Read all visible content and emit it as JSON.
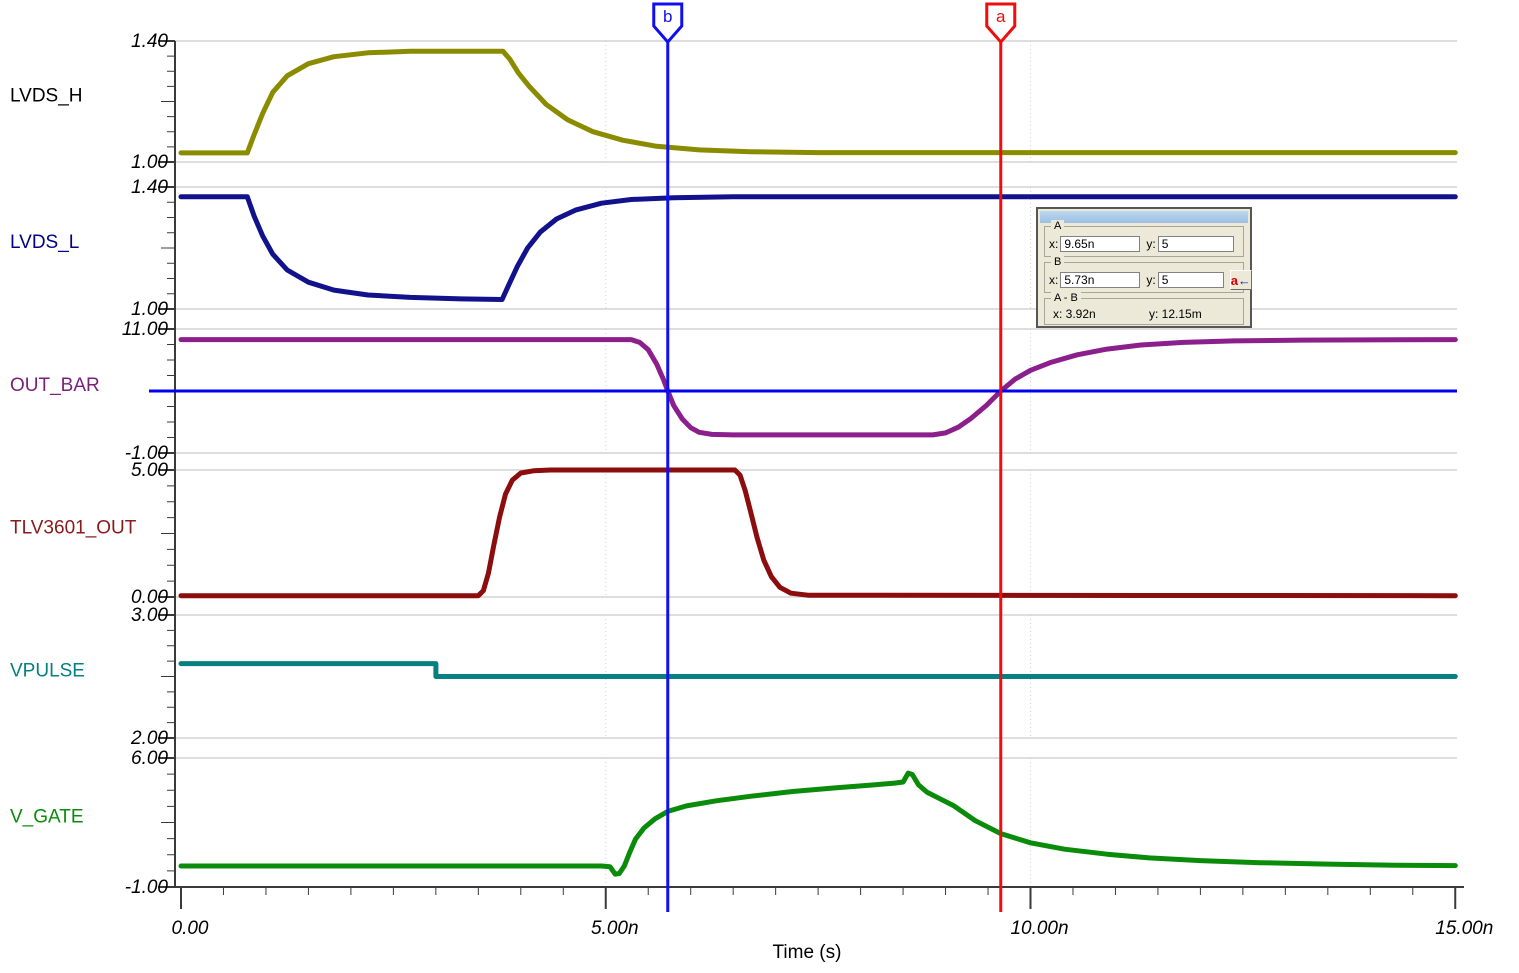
{
  "chart_data": {
    "type": "line",
    "title": "",
    "xlabel": "Time (s)",
    "x_unit": "ns",
    "x_range": [
      0,
      15
    ],
    "x_minor_step": 0.5,
    "x_major_ticks": [
      {
        "t": 0,
        "label": "0.00"
      },
      {
        "t": 5,
        "label": "5.00n"
      },
      {
        "t": 10,
        "label": "10.00n"
      },
      {
        "t": 15,
        "label": "15.00n"
      }
    ],
    "grid": "panel-top-bottom-lines plus dotted verticals at major ticks",
    "panels": [
      {
        "name": "LVDS_H",
        "label_color": "#000000",
        "color": "#8B8B00",
        "ymin": 1.0,
        "ymax": 1.4,
        "ymin_label": "1.00",
        "ymax_label": "1.40",
        "points": [
          [
            0,
            1.03
          ],
          [
            0.78,
            1.03
          ],
          [
            0.86,
            1.09
          ],
          [
            0.96,
            1.16
          ],
          [
            1.08,
            1.23
          ],
          [
            1.25,
            1.285
          ],
          [
            1.5,
            1.325
          ],
          [
            1.8,
            1.348
          ],
          [
            2.2,
            1.361
          ],
          [
            2.7,
            1.366
          ],
          [
            3.79,
            1.366
          ],
          [
            3.87,
            1.34
          ],
          [
            3.97,
            1.295
          ],
          [
            4.1,
            1.25
          ],
          [
            4.3,
            1.19
          ],
          [
            4.55,
            1.14
          ],
          [
            4.85,
            1.1
          ],
          [
            5.2,
            1.072
          ],
          [
            5.6,
            1.052
          ],
          [
            6.1,
            1.04
          ],
          [
            6.7,
            1.034
          ],
          [
            7.5,
            1.031
          ],
          [
            15,
            1.031
          ]
        ]
      },
      {
        "name": "LVDS_L",
        "label_color": "#00008B",
        "color": "#12128C",
        "ymin": 1.0,
        "ymax": 1.4,
        "ymin_label": "1.00",
        "ymax_label": "1.40",
        "points": [
          [
            0,
            1.368
          ],
          [
            0.78,
            1.368
          ],
          [
            0.86,
            1.305
          ],
          [
            0.96,
            1.24
          ],
          [
            1.08,
            1.18
          ],
          [
            1.25,
            1.128
          ],
          [
            1.5,
            1.088
          ],
          [
            1.8,
            1.062
          ],
          [
            2.2,
            1.046
          ],
          [
            2.7,
            1.038
          ],
          [
            3.3,
            1.033
          ],
          [
            3.78,
            1.031
          ],
          [
            3.86,
            1.08
          ],
          [
            3.96,
            1.14
          ],
          [
            4.08,
            1.2
          ],
          [
            4.23,
            1.252
          ],
          [
            4.42,
            1.295
          ],
          [
            4.65,
            1.325
          ],
          [
            4.95,
            1.347
          ],
          [
            5.3,
            1.359
          ],
          [
            5.8,
            1.365
          ],
          [
            6.5,
            1.368
          ],
          [
            15,
            1.368
          ]
        ]
      },
      {
        "name": "OUT_BAR",
        "label_color": "#7B1F7B",
        "color": "#8B1F8B",
        "ymin": -1.0,
        "ymax": 11.0,
        "ymin_label": "-1.00",
        "ymax_label": "11.00",
        "hline": {
          "value": 5,
          "color": "#0000F0"
        },
        "points": [
          [
            0,
            9.97
          ],
          [
            5.3,
            9.97
          ],
          [
            5.4,
            9.7
          ],
          [
            5.5,
            9.0
          ],
          [
            5.6,
            7.6
          ],
          [
            5.68,
            6.1
          ],
          [
            5.73,
            5.0
          ],
          [
            5.8,
            3.6
          ],
          [
            5.9,
            2.3
          ],
          [
            6.0,
            1.45
          ],
          [
            6.1,
            1.0
          ],
          [
            6.25,
            0.8
          ],
          [
            6.5,
            0.75
          ],
          [
            8.85,
            0.75
          ],
          [
            9.0,
            0.95
          ],
          [
            9.15,
            1.5
          ],
          [
            9.3,
            2.35
          ],
          [
            9.48,
            3.6
          ],
          [
            9.65,
            5.0
          ],
          [
            9.82,
            6.15
          ],
          [
            10.0,
            7.0
          ],
          [
            10.25,
            7.8
          ],
          [
            10.55,
            8.5
          ],
          [
            10.9,
            9.05
          ],
          [
            11.3,
            9.45
          ],
          [
            11.8,
            9.7
          ],
          [
            12.4,
            9.85
          ],
          [
            13.2,
            9.93
          ],
          [
            15,
            9.97
          ]
        ]
      },
      {
        "name": "TLV3601_OUT",
        "label_color": "#8B1A1A",
        "color": "#8B0D0D",
        "ymin": 0.0,
        "ymax": 5.0,
        "ymin_label": "0.00",
        "ymax_label": "5.00",
        "points": [
          [
            0,
            0.05
          ],
          [
            3.5,
            0.05
          ],
          [
            3.56,
            0.25
          ],
          [
            3.62,
            0.95
          ],
          [
            3.68,
            2.0
          ],
          [
            3.75,
            3.15
          ],
          [
            3.82,
            4.05
          ],
          [
            3.9,
            4.6
          ],
          [
            4.0,
            4.88
          ],
          [
            4.15,
            4.97
          ],
          [
            4.35,
            5.0
          ],
          [
            6.52,
            5.0
          ],
          [
            6.58,
            4.8
          ],
          [
            6.64,
            4.2
          ],
          [
            6.71,
            3.3
          ],
          [
            6.78,
            2.35
          ],
          [
            6.86,
            1.45
          ],
          [
            6.95,
            0.8
          ],
          [
            7.05,
            0.38
          ],
          [
            7.18,
            0.15
          ],
          [
            7.38,
            0.07
          ],
          [
            15,
            0.05
          ]
        ]
      },
      {
        "name": "VPULSE",
        "label_color": "#067F80",
        "color": "#068080",
        "ymin": 2.0,
        "ymax": 3.0,
        "ymin_label": "2.00",
        "ymax_label": "3.00",
        "points": [
          [
            0,
            2.605
          ],
          [
            3.0,
            2.605
          ],
          [
            3.0,
            2.5
          ],
          [
            15,
            2.5
          ]
        ]
      },
      {
        "name": "V_GATE",
        "label_color": "#0A8C0A",
        "color": "#0A8C0A",
        "ymin": -1.0,
        "ymax": 6.0,
        "ymin_label": "-1.00",
        "ymax_label": "6.00",
        "points": [
          [
            0,
            0.14
          ],
          [
            4.95,
            0.14
          ],
          [
            5.05,
            0.1
          ],
          [
            5.11,
            -0.3
          ],
          [
            5.16,
            -0.27
          ],
          [
            5.22,
            0.15
          ],
          [
            5.28,
            0.85
          ],
          [
            5.35,
            1.6
          ],
          [
            5.45,
            2.2
          ],
          [
            5.58,
            2.7
          ],
          [
            5.73,
            3.1
          ],
          [
            5.95,
            3.4
          ],
          [
            6.3,
            3.68
          ],
          [
            6.7,
            3.92
          ],
          [
            7.2,
            4.18
          ],
          [
            7.7,
            4.38
          ],
          [
            8.1,
            4.52
          ],
          [
            8.4,
            4.64
          ],
          [
            8.5,
            4.7
          ],
          [
            8.56,
            5.18
          ],
          [
            8.61,
            5.1
          ],
          [
            8.68,
            4.55
          ],
          [
            8.78,
            4.15
          ],
          [
            8.92,
            3.82
          ],
          [
            9.1,
            3.4
          ],
          [
            9.35,
            2.6
          ],
          [
            9.65,
            1.9
          ],
          [
            10.0,
            1.4
          ],
          [
            10.4,
            1.05
          ],
          [
            10.9,
            0.78
          ],
          [
            11.4,
            0.58
          ],
          [
            12.0,
            0.43
          ],
          [
            12.7,
            0.32
          ],
          [
            13.5,
            0.24
          ],
          [
            14.3,
            0.18
          ],
          [
            15,
            0.16
          ]
        ]
      }
    ],
    "cursors": [
      {
        "id": "b",
        "t": 5.73,
        "color": "#1010EE"
      },
      {
        "id": "a",
        "t": 9.65,
        "color": "#EE0E0E"
      }
    ],
    "legend_position": "labels left of each panel"
  },
  "cursor_box": {
    "groups": {
      "a": {
        "title": "A",
        "x_label": "x:",
        "x_value": "9.65n",
        "y_label": "y:",
        "y_value": "5"
      },
      "b": {
        "title": "B",
        "x_label": "x:",
        "x_value": "5.73n",
        "y_label": "y:",
        "y_value": "5",
        "button_letter": "a",
        "button_arrow": "←"
      },
      "diff": {
        "title": "A - B",
        "x_text": "x:   3.92n",
        "y_text": "y:   12.15m"
      }
    }
  }
}
